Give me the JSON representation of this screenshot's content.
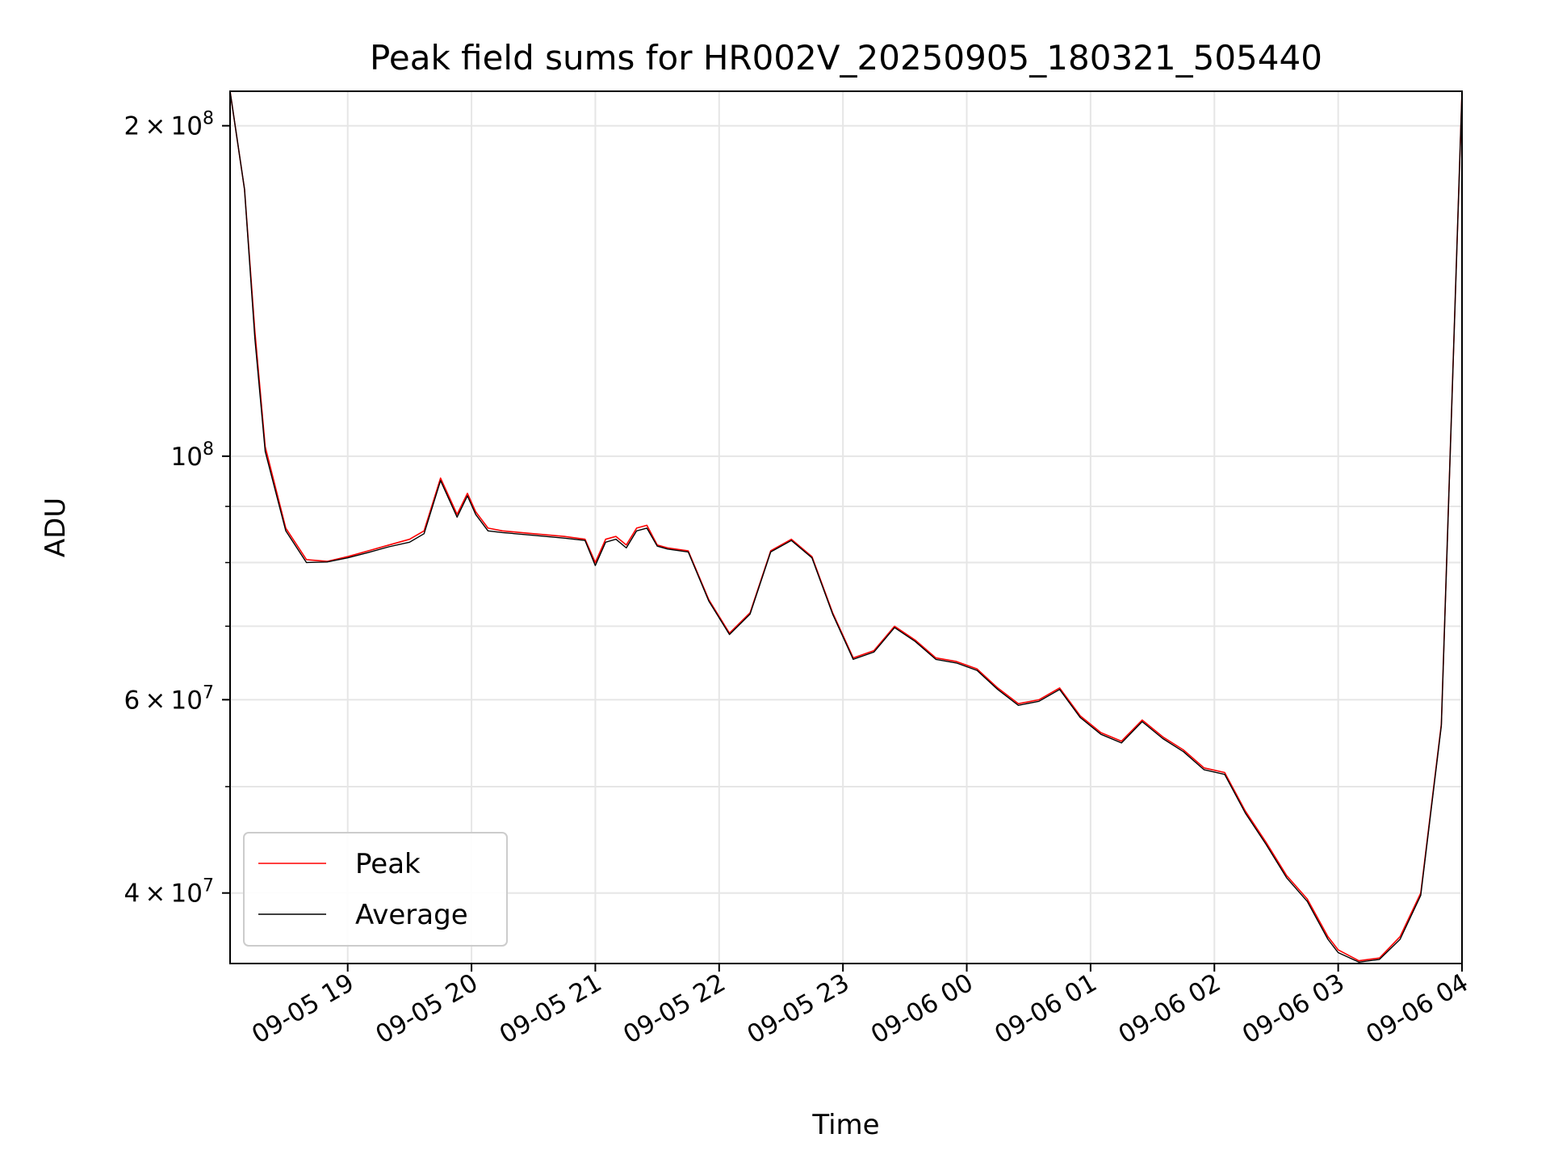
{
  "chart_data": {
    "type": "line",
    "title": "Peak field sums for HR002V_20250905_180321_505440",
    "xlabel": "Time",
    "ylabel": "ADU",
    "yscale": "log",
    "ylim": [
      34500000,
      215000000
    ],
    "xlim": [
      "2025-09-05 18:03",
      "2025-09-06 04:00"
    ],
    "grid": true,
    "legend_position": "lower-left",
    "x_ticks": [
      "09-05 19",
      "09-05 20",
      "09-05 21",
      "09-05 22",
      "09-05 23",
      "09-06 00",
      "09-06 01",
      "09-06 02",
      "09-06 03",
      "09-06 04"
    ],
    "y_ticks_major": [
      "2×10^8",
      "10^8",
      "6×10^7",
      "4×10^7"
    ],
    "series": [
      {
        "name": "Peak",
        "color": "#ff0000",
        "x": [
          "2025-09-05 18:03",
          "2025-09-05 18:10",
          "2025-09-05 18:15",
          "2025-09-05 18:20",
          "2025-09-05 18:30",
          "2025-09-05 18:40",
          "2025-09-05 18:50",
          "2025-09-05 19:00",
          "2025-09-05 19:10",
          "2025-09-05 19:20",
          "2025-09-05 19:30",
          "2025-09-05 19:37",
          "2025-09-05 19:45",
          "2025-09-05 19:53",
          "2025-09-05 19:58",
          "2025-09-05 20:02",
          "2025-09-05 20:08",
          "2025-09-05 20:15",
          "2025-09-05 20:30",
          "2025-09-05 20:45",
          "2025-09-05 20:55",
          "2025-09-05 21:00",
          "2025-09-05 21:05",
          "2025-09-05 21:10",
          "2025-09-05 21:15",
          "2025-09-05 21:20",
          "2025-09-05 21:25",
          "2025-09-05 21:30",
          "2025-09-05 21:35",
          "2025-09-05 21:45",
          "2025-09-05 21:55",
          "2025-09-05 22:05",
          "2025-09-05 22:15",
          "2025-09-05 22:25",
          "2025-09-05 22:35",
          "2025-09-05 22:45",
          "2025-09-05 22:55",
          "2025-09-05 23:05",
          "2025-09-05 23:15",
          "2025-09-05 23:25",
          "2025-09-05 23:35",
          "2025-09-05 23:45",
          "2025-09-05 23:55",
          "2025-09-06 00:05",
          "2025-09-06 00:15",
          "2025-09-06 00:25",
          "2025-09-06 00:35",
          "2025-09-06 00:45",
          "2025-09-06 00:55",
          "2025-09-06 01:05",
          "2025-09-06 01:15",
          "2025-09-06 01:25",
          "2025-09-06 01:35",
          "2025-09-06 01:45",
          "2025-09-06 01:55",
          "2025-09-06 02:05",
          "2025-09-06 02:15",
          "2025-09-06 02:25",
          "2025-09-06 02:35",
          "2025-09-06 02:45",
          "2025-09-06 02:55",
          "2025-09-06 03:00",
          "2025-09-06 03:10",
          "2025-09-06 03:20",
          "2025-09-06 03:30",
          "2025-09-06 03:40",
          "2025-09-06 03:50",
          "2025-09-06 04:00"
        ],
        "y": [
          215000000,
          175000000,
          130000000,
          102000000,
          86000000,
          80500000,
          80200000,
          81000000,
          82000000,
          83000000,
          84000000,
          85500000,
          95500000,
          88500000,
          92500000,
          89000000,
          86000000,
          85500000,
          85000000,
          84500000,
          84000000,
          80000000,
          84000000,
          84500000,
          83000000,
          86000000,
          86500000,
          83000000,
          82500000,
          82000000,
          74000000,
          69000000,
          72000000,
          82000000,
          84000000,
          81000000,
          72000000,
          65500000,
          66500000,
          70000000,
          68000000,
          65500000,
          65000000,
          64000000,
          61500000,
          59500000,
          60000000,
          61500000,
          58000000,
          56000000,
          55000000,
          57500000,
          55500000,
          54000000,
          52000000,
          51500000,
          47500000,
          44500000,
          41500000,
          39500000,
          36500000,
          35500000,
          34700000,
          34900000,
          36500000,
          40000000,
          57000000,
          215000000
        ]
      },
      {
        "name": "Average",
        "color": "#000000",
        "x": [
          "2025-09-05 18:03",
          "2025-09-05 18:10",
          "2025-09-05 18:15",
          "2025-09-05 18:20",
          "2025-09-05 18:30",
          "2025-09-05 18:40",
          "2025-09-05 18:50",
          "2025-09-05 19:00",
          "2025-09-05 19:10",
          "2025-09-05 19:20",
          "2025-09-05 19:30",
          "2025-09-05 19:37",
          "2025-09-05 19:45",
          "2025-09-05 19:53",
          "2025-09-05 19:58",
          "2025-09-05 20:02",
          "2025-09-05 20:08",
          "2025-09-05 20:15",
          "2025-09-05 20:30",
          "2025-09-05 20:45",
          "2025-09-05 20:55",
          "2025-09-05 21:00",
          "2025-09-05 21:05",
          "2025-09-05 21:10",
          "2025-09-05 21:15",
          "2025-09-05 21:20",
          "2025-09-05 21:25",
          "2025-09-05 21:30",
          "2025-09-05 21:35",
          "2025-09-05 21:45",
          "2025-09-05 21:55",
          "2025-09-05 22:05",
          "2025-09-05 22:15",
          "2025-09-05 22:25",
          "2025-09-05 22:35",
          "2025-09-05 22:45",
          "2025-09-05 22:55",
          "2025-09-05 23:05",
          "2025-09-05 23:15",
          "2025-09-05 23:25",
          "2025-09-05 23:35",
          "2025-09-05 23:45",
          "2025-09-05 23:55",
          "2025-09-06 00:05",
          "2025-09-06 00:15",
          "2025-09-06 00:25",
          "2025-09-06 00:35",
          "2025-09-06 00:45",
          "2025-09-06 00:55",
          "2025-09-06 01:05",
          "2025-09-06 01:15",
          "2025-09-06 01:25",
          "2025-09-06 01:35",
          "2025-09-06 01:45",
          "2025-09-06 01:55",
          "2025-09-06 02:05",
          "2025-09-06 02:15",
          "2025-09-06 02:25",
          "2025-09-06 02:35",
          "2025-09-06 02:45",
          "2025-09-06 02:55",
          "2025-09-06 03:00",
          "2025-09-06 03:10",
          "2025-09-06 03:20",
          "2025-09-06 03:30",
          "2025-09-06 03:40",
          "2025-09-06 03:50",
          "2025-09-06 04:00"
        ],
        "y": [
          215000000,
          175000000,
          128000000,
          101000000,
          85500000,
          80000000,
          80100000,
          80800000,
          81700000,
          82700000,
          83500000,
          85000000,
          95000000,
          88000000,
          92000000,
          88500000,
          85500000,
          85200000,
          84700000,
          84200000,
          83800000,
          79500000,
          83500000,
          84000000,
          82500000,
          85500000,
          86000000,
          82800000,
          82300000,
          81800000,
          73800000,
          68800000,
          71800000,
          81800000,
          83800000,
          80800000,
          71800000,
          65300000,
          66300000,
          69800000,
          67800000,
          65300000,
          64800000,
          63800000,
          61300000,
          59300000,
          59800000,
          61300000,
          57800000,
          55800000,
          54800000,
          57300000,
          55300000,
          53800000,
          51800000,
          51300000,
          47300000,
          44300000,
          41300000,
          39300000,
          36300000,
          35300000,
          34600000,
          34800000,
          36300000,
          39800000,
          56800000,
          215000000
        ]
      }
    ]
  }
}
